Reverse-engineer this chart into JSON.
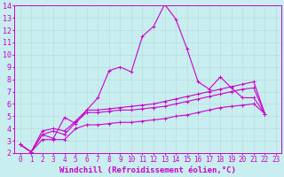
{
  "background_color": "#c8eef0",
  "grid_color": "#b8dfe0",
  "line_color": "#cc00cc",
  "xlabel": "Windchill (Refroidissement éolien,°C)",
  "xlim": [
    -0.5,
    23.5
  ],
  "ylim": [
    2,
    14
  ],
  "yticks": [
    2,
    3,
    4,
    5,
    6,
    7,
    8,
    9,
    10,
    11,
    12,
    13,
    14
  ],
  "xticks": [
    0,
    1,
    2,
    3,
    4,
    5,
    6,
    7,
    8,
    9,
    10,
    11,
    12,
    13,
    14,
    15,
    16,
    17,
    18,
    19,
    20,
    21,
    22,
    23
  ],
  "series": [
    {
      "x": [
        0,
        1,
        2,
        3,
        4,
        5,
        6,
        7,
        8,
        9,
        10,
        11,
        12,
        13,
        14,
        15,
        16,
        17,
        18,
        19,
        20,
        21,
        22
      ],
      "y": [
        2.7,
        2.1,
        3.5,
        3.2,
        4.9,
        4.4,
        5.5,
        6.5,
        8.7,
        9.0,
        8.6,
        11.5,
        12.3,
        14.1,
        12.9,
        10.5,
        7.8,
        7.2,
        8.2,
        7.3,
        6.5,
        6.5,
        5.2
      ]
    },
    {
      "x": [
        0,
        1,
        2,
        3,
        4,
        5,
        6,
        7,
        8,
        9,
        10,
        11,
        12,
        13,
        14,
        15,
        16,
        17,
        18,
        19,
        20,
        21,
        22
      ],
      "y": [
        2.7,
        2.1,
        3.8,
        4.0,
        3.8,
        4.6,
        5.5,
        5.5,
        5.6,
        5.7,
        5.8,
        5.9,
        6.0,
        6.2,
        6.4,
        6.6,
        6.8,
        7.0,
        7.2,
        7.4,
        7.6,
        7.8,
        5.2
      ]
    },
    {
      "x": [
        0,
        1,
        2,
        3,
        4,
        5,
        6,
        7,
        8,
        9,
        10,
        11,
        12,
        13,
        14,
        15,
        16,
        17,
        18,
        19,
        20,
        21,
        22
      ],
      "y": [
        2.7,
        2.1,
        3.5,
        3.8,
        3.5,
        4.5,
        5.3,
        5.3,
        5.4,
        5.5,
        5.5,
        5.6,
        5.7,
        5.8,
        6.0,
        6.2,
        6.4,
        6.6,
        6.8,
        7.0,
        7.2,
        7.3,
        5.2
      ]
    },
    {
      "x": [
        0,
        1,
        2,
        3,
        4,
        5,
        6,
        7,
        8,
        9,
        10,
        11,
        12,
        13,
        14,
        15,
        16,
        17,
        18,
        19,
        20,
        21,
        22
      ],
      "y": [
        2.7,
        2.1,
        3.1,
        3.1,
        3.1,
        4.0,
        4.3,
        4.3,
        4.4,
        4.5,
        4.5,
        4.6,
        4.7,
        4.8,
        5.0,
        5.1,
        5.3,
        5.5,
        5.7,
        5.8,
        5.9,
        6.0,
        5.2
      ]
    }
  ],
  "tick_fontsize": 5.5,
  "xlabel_fontsize": 6.5
}
